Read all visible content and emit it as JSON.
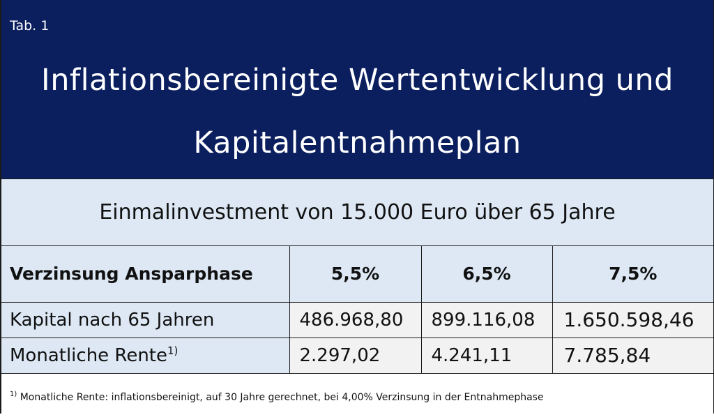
{
  "header": {
    "tab_label": "Tab. 1",
    "title_line1": "Inflationsbereinigte Wertentwicklung und",
    "title_line2": "Kapitalentnahmeplan"
  },
  "subtitle": "Einmalinvestment von 15.000 Euro über 65 Jahre",
  "table": {
    "header": {
      "label": "Verzinsung Ansparphase",
      "rates": [
        "5,5%",
        "6,5%",
        "7,5%"
      ]
    },
    "rows": [
      {
        "label": "Kapital nach 65 Jahren",
        "footnote_mark": "",
        "values": [
          "486.968,80",
          "899.116,08",
          "1.650.598,46"
        ]
      },
      {
        "label": "Monatliche Rente",
        "footnote_mark": "1)",
        "values": [
          "2.297,02",
          "4.241,11",
          "7.785,84"
        ]
      }
    ]
  },
  "footnote": {
    "mark": "1)",
    "text": "Monatliche Rente: inflationsbereinigt, auf 30 Jahre gerechnet, bei 4,00% Verzinsung in der Entnahmephase"
  },
  "colors": {
    "header_bg": "#0b1f5f",
    "light_blue": "#dde8f4",
    "cell_gray": "#f2f2f2"
  }
}
